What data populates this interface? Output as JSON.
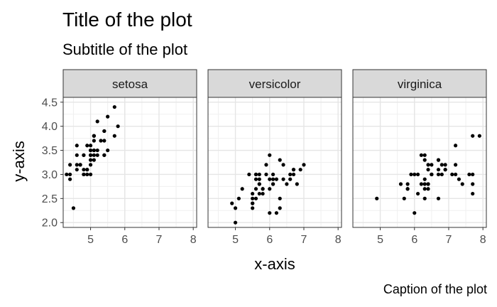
{
  "chart_data": {
    "type": "scatter",
    "title": "Title of the plot",
    "subtitle": "Subtitle of the plot",
    "caption": "Caption of the plot",
    "xlabel": "x-axis",
    "ylabel": "y-axis",
    "xlim": [
      4.2,
      8.1
    ],
    "ylim": [
      1.9,
      4.6
    ],
    "x_ticks": [
      5,
      6,
      7,
      8
    ],
    "y_ticks": [
      2.0,
      2.5,
      3.0,
      3.5,
      4.0,
      4.5
    ],
    "x_tick_labels": [
      "5",
      "6",
      "7",
      "8"
    ],
    "y_tick_labels": [
      "2.0",
      "2.5",
      "3.0",
      "3.5",
      "4.0",
      "4.5"
    ],
    "grid": true,
    "facets": [
      {
        "label": "setosa",
        "points": [
          [
            5.1,
            3.5
          ],
          [
            4.9,
            3.0
          ],
          [
            4.7,
            3.2
          ],
          [
            4.6,
            3.1
          ],
          [
            5.0,
            3.6
          ],
          [
            5.4,
            3.9
          ],
          [
            4.6,
            3.4
          ],
          [
            5.0,
            3.4
          ],
          [
            4.4,
            2.9
          ],
          [
            4.9,
            3.1
          ],
          [
            5.4,
            3.7
          ],
          [
            4.8,
            3.4
          ],
          [
            4.8,
            3.0
          ],
          [
            4.3,
            3.0
          ],
          [
            5.8,
            4.0
          ],
          [
            5.7,
            4.4
          ],
          [
            5.4,
            3.9
          ],
          [
            5.1,
            3.5
          ],
          [
            5.7,
            3.8
          ],
          [
            5.1,
            3.8
          ],
          [
            5.4,
            3.4
          ],
          [
            5.1,
            3.7
          ],
          [
            4.6,
            3.6
          ],
          [
            5.1,
            3.3
          ],
          [
            4.8,
            3.4
          ],
          [
            5.0,
            3.0
          ],
          [
            5.0,
            3.4
          ],
          [
            5.2,
            3.5
          ],
          [
            5.2,
            3.4
          ],
          [
            4.7,
            3.2
          ],
          [
            4.8,
            3.1
          ],
          [
            5.4,
            3.4
          ],
          [
            5.2,
            4.1
          ],
          [
            5.5,
            4.2
          ],
          [
            4.9,
            3.1
          ],
          [
            5.0,
            3.2
          ],
          [
            5.5,
            3.5
          ],
          [
            4.9,
            3.6
          ],
          [
            4.4,
            3.0
          ],
          [
            5.1,
            3.4
          ],
          [
            5.0,
            3.5
          ],
          [
            4.5,
            2.3
          ],
          [
            4.4,
            3.2
          ],
          [
            5.0,
            3.5
          ],
          [
            5.1,
            3.8
          ],
          [
            4.8,
            3.0
          ],
          [
            5.1,
            3.8
          ],
          [
            4.6,
            3.2
          ],
          [
            5.3,
            3.7
          ],
          [
            5.0,
            3.3
          ]
        ]
      },
      {
        "label": "versicolor",
        "points": [
          [
            7.0,
            3.2
          ],
          [
            6.4,
            3.2
          ],
          [
            6.9,
            3.1
          ],
          [
            5.5,
            2.3
          ],
          [
            6.5,
            2.8
          ],
          [
            5.7,
            2.8
          ],
          [
            6.3,
            3.3
          ],
          [
            4.9,
            2.4
          ],
          [
            6.6,
            2.9
          ],
          [
            5.2,
            2.7
          ],
          [
            5.0,
            2.0
          ],
          [
            5.9,
            3.0
          ],
          [
            6.0,
            2.2
          ],
          [
            6.1,
            2.9
          ],
          [
            5.6,
            2.9
          ],
          [
            6.7,
            3.1
          ],
          [
            5.6,
            3.0
          ],
          [
            5.8,
            2.7
          ],
          [
            6.2,
            2.2
          ],
          [
            5.6,
            2.5
          ],
          [
            5.9,
            3.2
          ],
          [
            6.1,
            2.8
          ],
          [
            6.3,
            2.5
          ],
          [
            6.1,
            2.8
          ],
          [
            6.4,
            2.9
          ],
          [
            6.6,
            3.0
          ],
          [
            6.8,
            2.8
          ],
          [
            6.7,
            3.0
          ],
          [
            6.0,
            2.9
          ],
          [
            5.7,
            2.6
          ],
          [
            5.5,
            2.4
          ],
          [
            5.5,
            2.4
          ],
          [
            5.8,
            2.7
          ],
          [
            6.0,
            2.7
          ],
          [
            5.4,
            3.0
          ],
          [
            6.0,
            3.4
          ],
          [
            6.7,
            3.1
          ],
          [
            6.3,
            2.3
          ],
          [
            5.6,
            3.0
          ],
          [
            5.5,
            2.5
          ],
          [
            5.5,
            2.6
          ],
          [
            6.1,
            3.0
          ],
          [
            5.8,
            2.6
          ],
          [
            5.0,
            2.3
          ],
          [
            5.6,
            2.7
          ],
          [
            5.7,
            3.0
          ],
          [
            5.7,
            2.9
          ],
          [
            6.2,
            2.9
          ],
          [
            5.1,
            2.5
          ],
          [
            5.7,
            2.8
          ]
        ]
      },
      {
        "label": "virginica",
        "points": [
          [
            6.3,
            3.3
          ],
          [
            5.8,
            2.7
          ],
          [
            7.1,
            3.0
          ],
          [
            6.3,
            2.9
          ],
          [
            6.5,
            3.0
          ],
          [
            7.6,
            3.0
          ],
          [
            4.9,
            2.5
          ],
          [
            7.3,
            2.9
          ],
          [
            6.7,
            2.5
          ],
          [
            7.2,
            3.6
          ],
          [
            6.5,
            3.2
          ],
          [
            6.4,
            2.7
          ],
          [
            6.8,
            3.0
          ],
          [
            5.7,
            2.5
          ],
          [
            5.8,
            2.8
          ],
          [
            6.4,
            3.2
          ],
          [
            6.5,
            3.0
          ],
          [
            7.7,
            3.8
          ],
          [
            7.7,
            2.6
          ],
          [
            6.0,
            2.2
          ],
          [
            6.9,
            3.2
          ],
          [
            5.6,
            2.8
          ],
          [
            7.7,
            2.8
          ],
          [
            6.3,
            2.7
          ],
          [
            6.7,
            3.3
          ],
          [
            7.2,
            3.2
          ],
          [
            6.2,
            2.8
          ],
          [
            6.1,
            3.0
          ],
          [
            6.4,
            2.8
          ],
          [
            7.2,
            3.0
          ],
          [
            7.4,
            2.8
          ],
          [
            7.9,
            3.8
          ],
          [
            6.4,
            2.8
          ],
          [
            6.3,
            2.8
          ],
          [
            6.1,
            2.6
          ],
          [
            7.7,
            3.0
          ],
          [
            6.3,
            3.4
          ],
          [
            6.4,
            3.1
          ],
          [
            6.0,
            3.0
          ],
          [
            6.9,
            3.1
          ],
          [
            6.7,
            3.1
          ],
          [
            6.9,
            3.1
          ],
          [
            5.8,
            2.7
          ],
          [
            6.8,
            3.2
          ],
          [
            6.7,
            3.3
          ],
          [
            6.7,
            3.0
          ],
          [
            6.3,
            2.5
          ],
          [
            6.5,
            3.0
          ],
          [
            6.2,
            3.4
          ],
          [
            5.9,
            3.0
          ]
        ]
      }
    ]
  }
}
